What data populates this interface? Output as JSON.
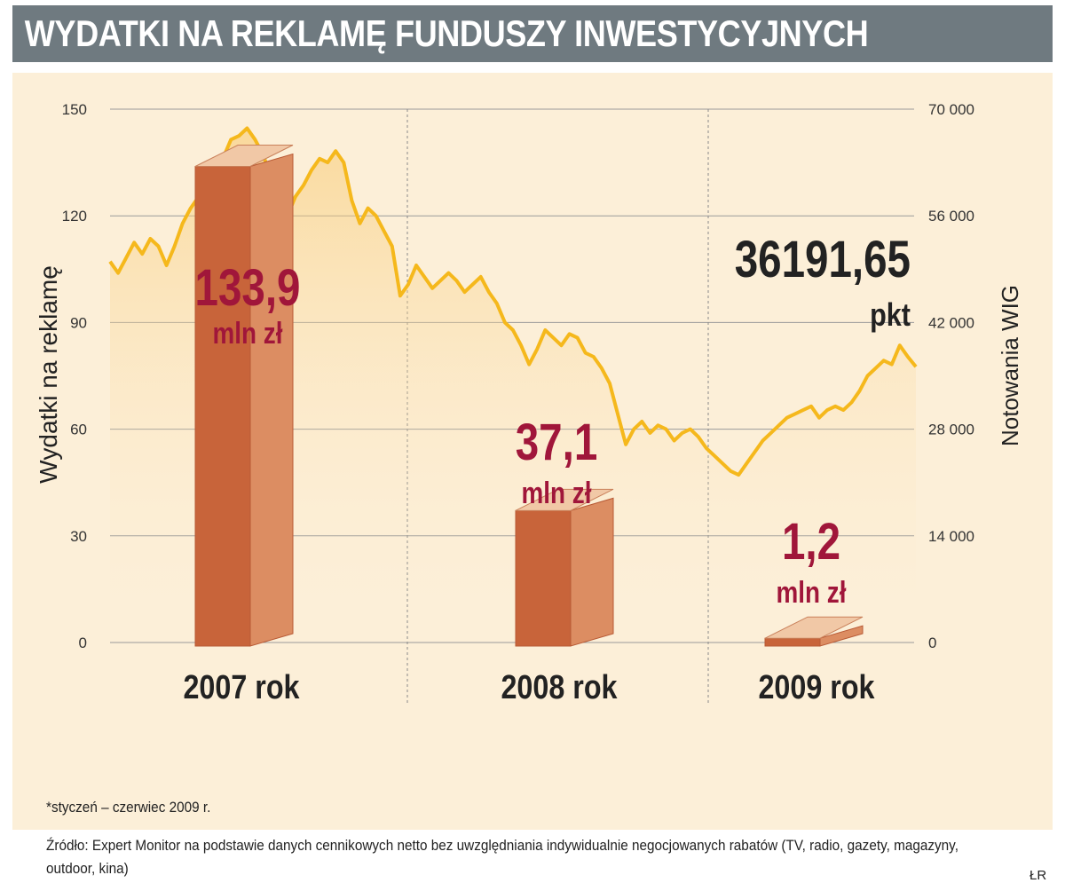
{
  "title": "WYDATKI NA REKLAMĘ FUNDUSZY INWESTYCYJNYCH",
  "footnote": "*styczeń – czerwiec 2009 r.",
  "source": "Źródło: Expert Monitor na podstawie danych cennikowych netto bez uwzględniania indywidualnie negocjowanych rabatów (TV, radio, gazety, magazyny, outdoor, kina)",
  "author": "ŁR",
  "colors": {
    "title_bg": "#6f7a80",
    "panel_bg": "#fcefd8",
    "bar_front": "#c8643a",
    "bar_side": "#dc8d62",
    "bar_top": "#f1c8a6",
    "line": "#f5b81c",
    "value_label": "#a0163a",
    "wig_label": "#222222",
    "axis_text": "#333333"
  },
  "chart_data": {
    "type": "bar",
    "categories": [
      "2007 rok",
      "2008 rok",
      "2009 rok"
    ],
    "bars": [
      {
        "value": 133.9,
        "value_label": "133,9",
        "unit": "mln zł"
      },
      {
        "value": 37.1,
        "value_label": "37,1",
        "unit": "mln zł"
      },
      {
        "value": 1.2,
        "value_label": "1,2",
        "unit": "mln zł"
      }
    ],
    "ylabel": "Wydatki na reklamę",
    "ylim": [
      0,
      150
    ],
    "yticks": [
      "0",
      "30",
      "60",
      "90",
      "120",
      "150"
    ],
    "y2label": "Notowania WIG",
    "y2lim": [
      0,
      70000
    ],
    "y2ticks": [
      "0",
      "14 000",
      "28 000",
      "42 000",
      "56 000",
      "70 000"
    ],
    "grid": true,
    "line_series": {
      "name": "WIG",
      "type": "line",
      "last_value_label": "36191,65",
      "last_value_unit": "pkt",
      "points": [
        [
          0.0,
          50000
        ],
        [
          0.01,
          48500
        ],
        [
          0.02,
          50500
        ],
        [
          0.03,
          52500
        ],
        [
          0.04,
          51000
        ],
        [
          0.05,
          53000
        ],
        [
          0.06,
          52000
        ],
        [
          0.07,
          49500
        ],
        [
          0.08,
          52000
        ],
        [
          0.09,
          55000
        ],
        [
          0.1,
          57000
        ],
        [
          0.11,
          58500
        ],
        [
          0.12,
          59000
        ],
        [
          0.13,
          61000
        ],
        [
          0.14,
          63500
        ],
        [
          0.15,
          66000
        ],
        [
          0.16,
          66500
        ],
        [
          0.17,
          67500
        ],
        [
          0.18,
          66000
        ],
        [
          0.19,
          64000
        ],
        [
          0.2,
          61000
        ],
        [
          0.21,
          57000
        ],
        [
          0.22,
          56000
        ],
        [
          0.23,
          58500
        ],
        [
          0.24,
          60000
        ],
        [
          0.25,
          62000
        ],
        [
          0.26,
          63500
        ],
        [
          0.27,
          63000
        ],
        [
          0.28,
          64500
        ],
        [
          0.29,
          63000
        ],
        [
          0.3,
          58000
        ],
        [
          0.31,
          55000
        ],
        [
          0.32,
          57000
        ],
        [
          0.33,
          56000
        ],
        [
          0.34,
          54000
        ],
        [
          0.35,
          52000
        ],
        [
          0.36,
          45500
        ],
        [
          0.37,
          47000
        ],
        [
          0.38,
          49500
        ],
        [
          0.39,
          48000
        ],
        [
          0.4,
          46500
        ],
        [
          0.41,
          47500
        ],
        [
          0.42,
          48500
        ],
        [
          0.43,
          47500
        ],
        [
          0.44,
          46000
        ],
        [
          0.45,
          47000
        ],
        [
          0.46,
          48000
        ],
        [
          0.47,
          46000
        ],
        [
          0.48,
          44500
        ],
        [
          0.49,
          42000
        ],
        [
          0.5,
          41000
        ],
        [
          0.51,
          39000
        ],
        [
          0.52,
          36500
        ],
        [
          0.53,
          38500
        ],
        [
          0.54,
          41000
        ],
        [
          0.55,
          40000
        ],
        [
          0.56,
          39000
        ],
        [
          0.57,
          40500
        ],
        [
          0.58,
          40000
        ],
        [
          0.59,
          38000
        ],
        [
          0.6,
          37500
        ],
        [
          0.61,
          36000
        ],
        [
          0.62,
          34000
        ],
        [
          0.63,
          30000
        ],
        [
          0.64,
          26000
        ],
        [
          0.65,
          28000
        ],
        [
          0.66,
          29000
        ],
        [
          0.67,
          27500
        ],
        [
          0.68,
          28500
        ],
        [
          0.69,
          28000
        ],
        [
          0.7,
          26500
        ],
        [
          0.71,
          27500
        ],
        [
          0.72,
          28000
        ],
        [
          0.73,
          27000
        ],
        [
          0.74,
          25500
        ],
        [
          0.75,
          24500
        ],
        [
          0.76,
          23500
        ],
        [
          0.77,
          22500
        ],
        [
          0.78,
          22000
        ],
        [
          0.79,
          23500
        ],
        [
          0.8,
          25000
        ],
        [
          0.81,
          26500
        ],
        [
          0.82,
          27500
        ],
        [
          0.83,
          28500
        ],
        [
          0.84,
          29500
        ],
        [
          0.85,
          30000
        ],
        [
          0.86,
          30500
        ],
        [
          0.87,
          31000
        ],
        [
          0.88,
          29500
        ],
        [
          0.89,
          30500
        ],
        [
          0.9,
          31000
        ],
        [
          0.91,
          30500
        ],
        [
          0.92,
          31500
        ],
        [
          0.93,
          33000
        ],
        [
          0.94,
          35000
        ],
        [
          0.95,
          36000
        ],
        [
          0.96,
          37000
        ],
        [
          0.97,
          36500
        ],
        [
          0.98,
          39000
        ],
        [
          0.99,
          37500
        ],
        [
          1.0,
          36191.65
        ]
      ]
    }
  }
}
